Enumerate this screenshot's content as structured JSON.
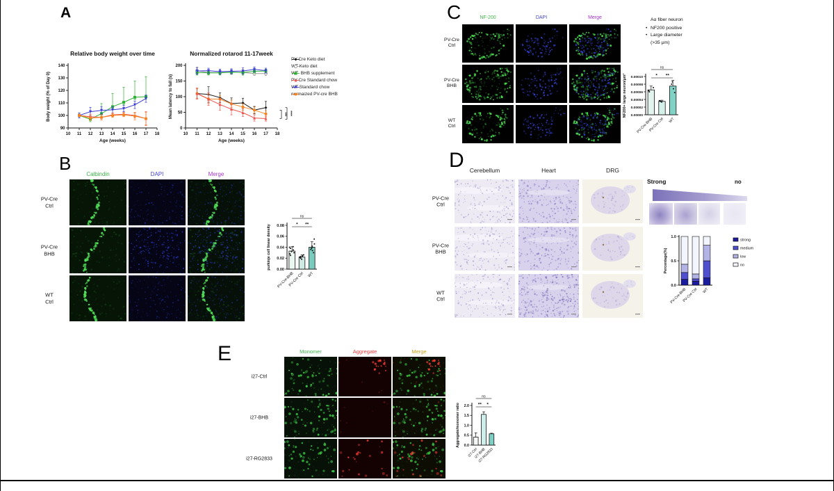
{
  "figure": {
    "panels": {
      "A": "A",
      "B": "B",
      "C": "C",
      "D": "D",
      "E": "E"
    }
  },
  "panelA": {
    "legend": [
      {
        "label": "PV-Cre Keto diet",
        "color": "#1a1a1a",
        "marker": "diamond"
      },
      {
        "label": "WT Keto diet",
        "color": "#9b9b9b",
        "marker": "circle-open"
      },
      {
        "label": "WT  BHB supplement",
        "color": "#2eb135",
        "marker": "square"
      },
      {
        "label": "PV-Cre Standard chow",
        "color": "#f0534d",
        "marker": "triangle"
      },
      {
        "label": "WT Standard chow",
        "color": "#3a3ad6",
        "marker": "triangle-down"
      },
      {
        "label": "normaized PV-cre BHB",
        "color": "#f58220",
        "marker": "circle"
      }
    ]
  },
  "panelB": {
    "columns": [
      {
        "label": "Calbindin",
        "color": "#3db54a"
      },
      {
        "label": "DAPI",
        "color": "#4343dc"
      },
      {
        "label": "Merge",
        "color": "#a234c8"
      }
    ],
    "rows": [
      "PV-Cre\nCtrl",
      "PV-Cre\nBHB",
      "WT\nCtrl"
    ]
  },
  "panelC": {
    "columns": [
      {
        "label": "NF-200",
        "color": "#43b649"
      },
      {
        "label": "DAPI",
        "color": "#4343dc"
      },
      {
        "label": "Merge",
        "color": "#a234c8"
      }
    ],
    "rows": [
      "PV-Cre\nCtrl",
      "PV-Cre\nBHB",
      "WT\nCtrl"
    ],
    "note": {
      "title": "Aα fiber neuron",
      "bullets": [
        "NF200 positive",
        "Large diameter\n(>35 μm)"
      ]
    }
  },
  "panelD": {
    "columns": [
      {
        "label": "Cerebellum",
        "color": "#222222"
      },
      {
        "label": "Heart",
        "color": "#222222"
      },
      {
        "label": "DRG",
        "color": "#222222"
      }
    ],
    "rows": [
      "PV-Cre\nCtrl",
      "PV-Cre\nBHB",
      "WT\nCtrl"
    ],
    "gradient": {
      "left": "Strong",
      "right": "no"
    }
  },
  "panelE": {
    "columns": [
      {
        "label": "Monomer",
        "color": "#3db54a"
      },
      {
        "label": "Aggregate",
        "color": "#e8393c"
      },
      {
        "label": "Merge",
        "color": "#d1a51d"
      }
    ],
    "rows": [
      "i27-Ctrl",
      "i27-BHB",
      "i27-RG2833"
    ]
  },
  "chart_data": [
    {
      "id": "body-weight",
      "type": "line",
      "title": "Relative body weight over time",
      "xlabel": "Age (weeks)",
      "ylabel": "Body weight (% of Day 0)",
      "xlim": [
        10,
        18
      ],
      "ylim": [
        90,
        140
      ],
      "xticks": [
        10,
        11,
        12,
        13,
        14,
        15,
        16,
        17,
        18
      ],
      "yticks": [
        90,
        100,
        110,
        120,
        130,
        140
      ],
      "x": [
        11,
        12,
        13,
        14,
        15,
        16,
        17
      ],
      "series": [
        {
          "name": "WT  BHB supplement",
          "color": "#2eb135",
          "marker": "square",
          "values": [
            100,
            97,
            101.5,
            107,
            110.5,
            114.5,
            115
          ],
          "err_up": [
            2,
            2,
            8,
            10.5,
            12,
            13,
            16
          ],
          "err_dn": [
            2,
            2,
            2,
            2,
            2,
            2,
            2
          ]
        },
        {
          "name": "WT Standard chow",
          "color": "#3a3ad6",
          "marker": "triangle-down",
          "values": [
            100,
            103,
            104,
            104.5,
            105.5,
            108.5,
            113.5
          ],
          "err_up": [
            2,
            3.5,
            3,
            2.5,
            2.5,
            3,
            3
          ],
          "err_dn": [
            2,
            3.5,
            3,
            2.5,
            2.5,
            3,
            3
          ]
        },
        {
          "name": "PV-Cre Standard chow",
          "color": "#f0534d",
          "marker": "triangle",
          "values": [
            100,
            99,
            98.5,
            100.5,
            101,
            100,
            97.5
          ],
          "err_up": [
            1,
            2,
            2,
            1.5,
            1.5,
            2,
            5.5
          ],
          "err_dn": [
            1,
            2,
            2,
            1.5,
            1.5,
            2,
            5.5
          ]
        },
        {
          "name": "normaized PV-cre BHB",
          "color": "#f58220",
          "marker": "circle",
          "values": [
            100,
            98,
            98.5,
            100,
            100.5,
            99.5,
            97.5
          ],
          "err_up": [
            1,
            2,
            2,
            1.5,
            1.5,
            3,
            5
          ],
          "err_dn": [
            1,
            2,
            2,
            1.5,
            1.5,
            3,
            5
          ]
        }
      ]
    },
    {
      "id": "rotarod",
      "type": "line",
      "title": "Normalized rotarod 11-17week",
      "xlabel": "Age (weeks)",
      "ylabel": "Mean latency to fall (s)",
      "xlim": [
        10,
        18
      ],
      "ylim": [
        0,
        200
      ],
      "xticks": [
        10,
        11,
        12,
        13,
        14,
        15,
        16,
        17,
        18
      ],
      "yticks": [
        0,
        50,
        100,
        150,
        200
      ],
      "x": [
        11,
        12,
        13,
        14,
        15,
        16,
        17
      ],
      "series": [
        {
          "name": "WT Keto diet",
          "color": "#9b9b9b",
          "marker": "circle-open",
          "values": [
            183,
            177,
            177,
            179,
            177,
            174,
            174
          ],
          "err_up": [
            12,
            8,
            8,
            8,
            8,
            6,
            6
          ],
          "err_dn": [
            12,
            8,
            8,
            8,
            8,
            6,
            6
          ]
        },
        {
          "name": "WT  BHB supplement",
          "color": "#2eb135",
          "marker": "square",
          "values": [
            177,
            176,
            176,
            178,
            177,
            181,
            182
          ],
          "err_up": [
            8,
            6,
            6,
            6,
            8,
            6,
            6
          ],
          "err_dn": [
            8,
            6,
            6,
            6,
            8,
            6,
            6
          ]
        },
        {
          "name": "WT Standard chow",
          "color": "#3a3ad6",
          "marker": "triangle-down",
          "values": [
            182,
            183,
            180,
            181,
            182,
            187,
            183
          ],
          "err_up": [
            10,
            8,
            8,
            8,
            10,
            8,
            8
          ],
          "err_dn": [
            10,
            8,
            8,
            8,
            10,
            8,
            8
          ]
        },
        {
          "name": "PV-Cre Keto diet",
          "color": "#1a1a1a",
          "marker": "diamond",
          "values": [
            110,
            107,
            97,
            78,
            80,
            57,
            65
          ],
          "err_up": [
            15,
            25,
            15,
            18,
            15,
            12,
            20
          ],
          "err_dn": [
            15,
            25,
            15,
            18,
            15,
            12,
            20
          ]
        },
        {
          "name": "normaized PV-cre BHB",
          "color": "#f58220",
          "marker": "circle",
          "values": [
            110,
            93,
            92,
            77,
            67,
            57,
            45
          ],
          "err_up": [
            15,
            15,
            12,
            12,
            10,
            10,
            10
          ],
          "err_dn": [
            15,
            15,
            12,
            12,
            10,
            10,
            10
          ]
        },
        {
          "name": "PV-Cre Standard chow",
          "color": "#f0534d",
          "marker": "triangle",
          "values": [
            110,
            92,
            75,
            60,
            49,
            32,
            30
          ],
          "err_up": [
            18,
            20,
            18,
            18,
            12,
            10,
            8
          ],
          "err_dn": [
            18,
            20,
            18,
            18,
            12,
            10,
            8
          ]
        }
      ],
      "significance": [
        "****",
        "***"
      ]
    },
    {
      "id": "nf200-bars",
      "type": "bar",
      "ylabel": "NF200+ large neuron/μm²",
      "categories": [
        "PV-Cre-BHB",
        "PV-Cre Ctrl",
        "WT"
      ],
      "values": [
        6.5e-05,
        3.5e-05,
        7.5e-05
      ],
      "errors": [
        1e-05,
        3e-06,
        1.5e-05
      ],
      "bar_colors": [
        "#e3f3ee",
        "#d5efe9",
        "#82d2c5"
      ],
      "ylim": [
        0,
        0.0001
      ],
      "yticks": [
        0,
        2e-05,
        4e-05,
        6e-05,
        8e-05,
        0.0001
      ],
      "ytick_labels": [
        "0.00000",
        "0.00002",
        "0.00004",
        "0.00006",
        "0.00008",
        "0.00010"
      ],
      "points": [
        [
          6e-05,
          6.3e-05,
          7.1e-05
        ],
        [
          3.3e-05,
          3.5e-05,
          3.6e-05,
          3.7e-05
        ],
        [
          5.8e-05,
          6.8e-05,
          8e-05,
          8.6e-05
        ]
      ],
      "sig": [
        {
          "a": 0,
          "b": 1,
          "label": "*",
          "row": 1
        },
        {
          "a": 1,
          "b": 2,
          "label": "**",
          "row": 1
        },
        {
          "a": 0,
          "b": 2,
          "label": "ns",
          "row": 0
        }
      ]
    },
    {
      "id": "purkinje-bars",
      "type": "bar",
      "ylabel": "purkinje cell linear density",
      "categories": [
        "PV-Cre-BHB",
        "PV-Cre Ctrl",
        "WT"
      ],
      "values": [
        0.033,
        0.022,
        0.04
      ],
      "errors": [
        0.008,
        0.004,
        0.01
      ],
      "bar_colors": [
        "#eaf6f0",
        "#cfeae2",
        "#79cbbd"
      ],
      "ylim": [
        0,
        0.08
      ],
      "yticks": [
        0,
        0.02,
        0.04,
        0.06,
        0.08
      ],
      "ytick_labels": [
        "0.00",
        "0.02",
        "0.04",
        "0.06",
        "0.08"
      ],
      "points": [
        [
          0.025,
          0.028,
          0.03,
          0.032,
          0.035,
          0.038,
          0.04,
          0.041
        ],
        [
          0.018,
          0.02,
          0.021,
          0.022,
          0.023,
          0.024,
          0.026
        ],
        [
          0.03,
          0.034,
          0.036,
          0.038,
          0.04,
          0.042,
          0.046,
          0.055
        ]
      ],
      "sig": [
        {
          "a": 0,
          "b": 1,
          "label": "*",
          "row": 1
        },
        {
          "a": 1,
          "b": 2,
          "label": "**",
          "row": 1
        },
        {
          "a": 0,
          "b": 2,
          "label": "ns",
          "row": 0
        }
      ]
    },
    {
      "id": "ihc-stacked",
      "type": "stacked_bar",
      "ylabel": "Percentage(%)",
      "categories": [
        "PV-Cre-BHB",
        "PV-Cre Ctrl",
        "WT"
      ],
      "ylim": [
        0,
        1
      ],
      "yticks": [
        0,
        0.5,
        1
      ],
      "ytick_labels": [
        "0.0",
        "0.5",
        "1.0"
      ],
      "segments": [
        {
          "name": "strong",
          "color": "#1b1b9e",
          "values": [
            0.12,
            0.08,
            0.15
          ]
        },
        {
          "name": "medium",
          "color": "#4f4fd0",
          "values": [
            0.14,
            0.05,
            0.35
          ]
        },
        {
          "name": "low",
          "color": "#b3b3e6",
          "values": [
            0.17,
            0.1,
            0.32
          ]
        },
        {
          "name": "no",
          "color": "#f4f4fd",
          "values": [
            0.57,
            0.77,
            0.18
          ]
        }
      ]
    },
    {
      "id": "aggregate-bars",
      "type": "bar",
      "ylabel": "Aggregate/monomer ratio",
      "categories": [
        "i27-Ctrl",
        "i27-BHB",
        "i27-RG2833"
      ],
      "values": [
        0.4,
        1.55,
        0.57
      ],
      "errors": [
        0.22,
        0.13,
        0.03
      ],
      "bar_colors": [
        "#f3f6f4",
        "#cdeee9",
        "#7fd0c4"
      ],
      "ylim": [
        0,
        2
      ],
      "yticks": [
        0,
        0.5,
        1,
        1.5,
        2
      ],
      "ytick_labels": [
        "0.0",
        "0.5",
        "1.0",
        "1.5",
        "2.0"
      ],
      "points": [],
      "sig": [
        {
          "a": 0,
          "b": 1,
          "label": "**",
          "row": 1
        },
        {
          "a": 1,
          "b": 2,
          "label": "*",
          "row": 1
        },
        {
          "a": 0,
          "b": 2,
          "label": "ns",
          "row": 0
        }
      ]
    }
  ]
}
